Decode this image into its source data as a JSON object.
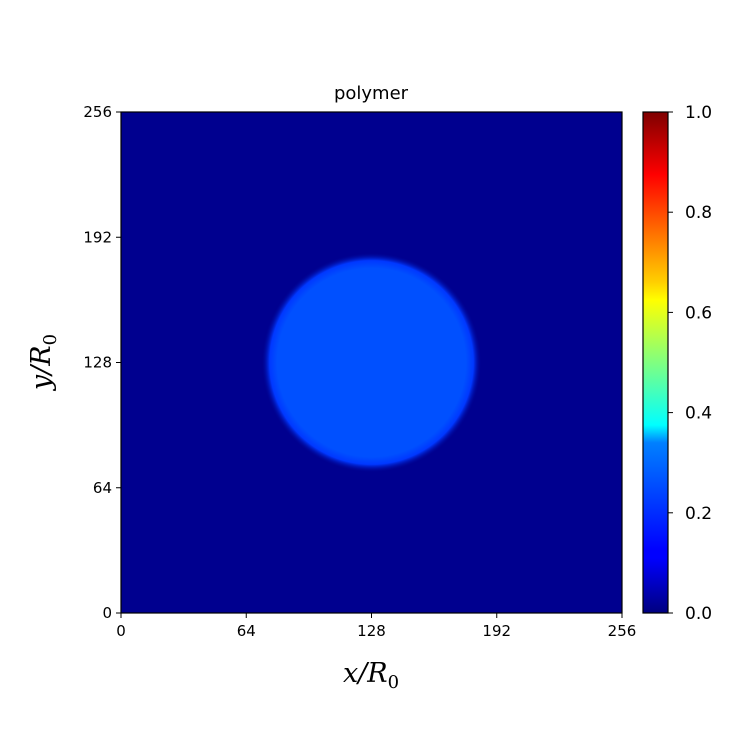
{
  "chart_data": {
    "type": "heatmap",
    "title": "polymer",
    "xlabel": {
      "main": "x/R",
      "sub": "0"
    },
    "ylabel": {
      "main": "y/R",
      "sub": "0"
    },
    "xlim": [
      0,
      256
    ],
    "ylim": [
      0,
      256
    ],
    "xticks": [
      "0",
      "64",
      "128",
      "192",
      "256"
    ],
    "yticks": [
      "0",
      "64",
      "128",
      "192",
      "256"
    ],
    "colormap": "jet",
    "colorbar": {
      "range": [
        0.0,
        1.0
      ],
      "ticks": [
        "0.0",
        "0.2",
        "0.4",
        "0.6",
        "0.8",
        "1.0"
      ]
    },
    "field": {
      "description_value": "circular droplet of polymer concentration",
      "background_value": 0.0,
      "droplet_value": 0.2,
      "droplet_center": [
        128,
        128
      ],
      "droplet_radius": 50
    }
  }
}
